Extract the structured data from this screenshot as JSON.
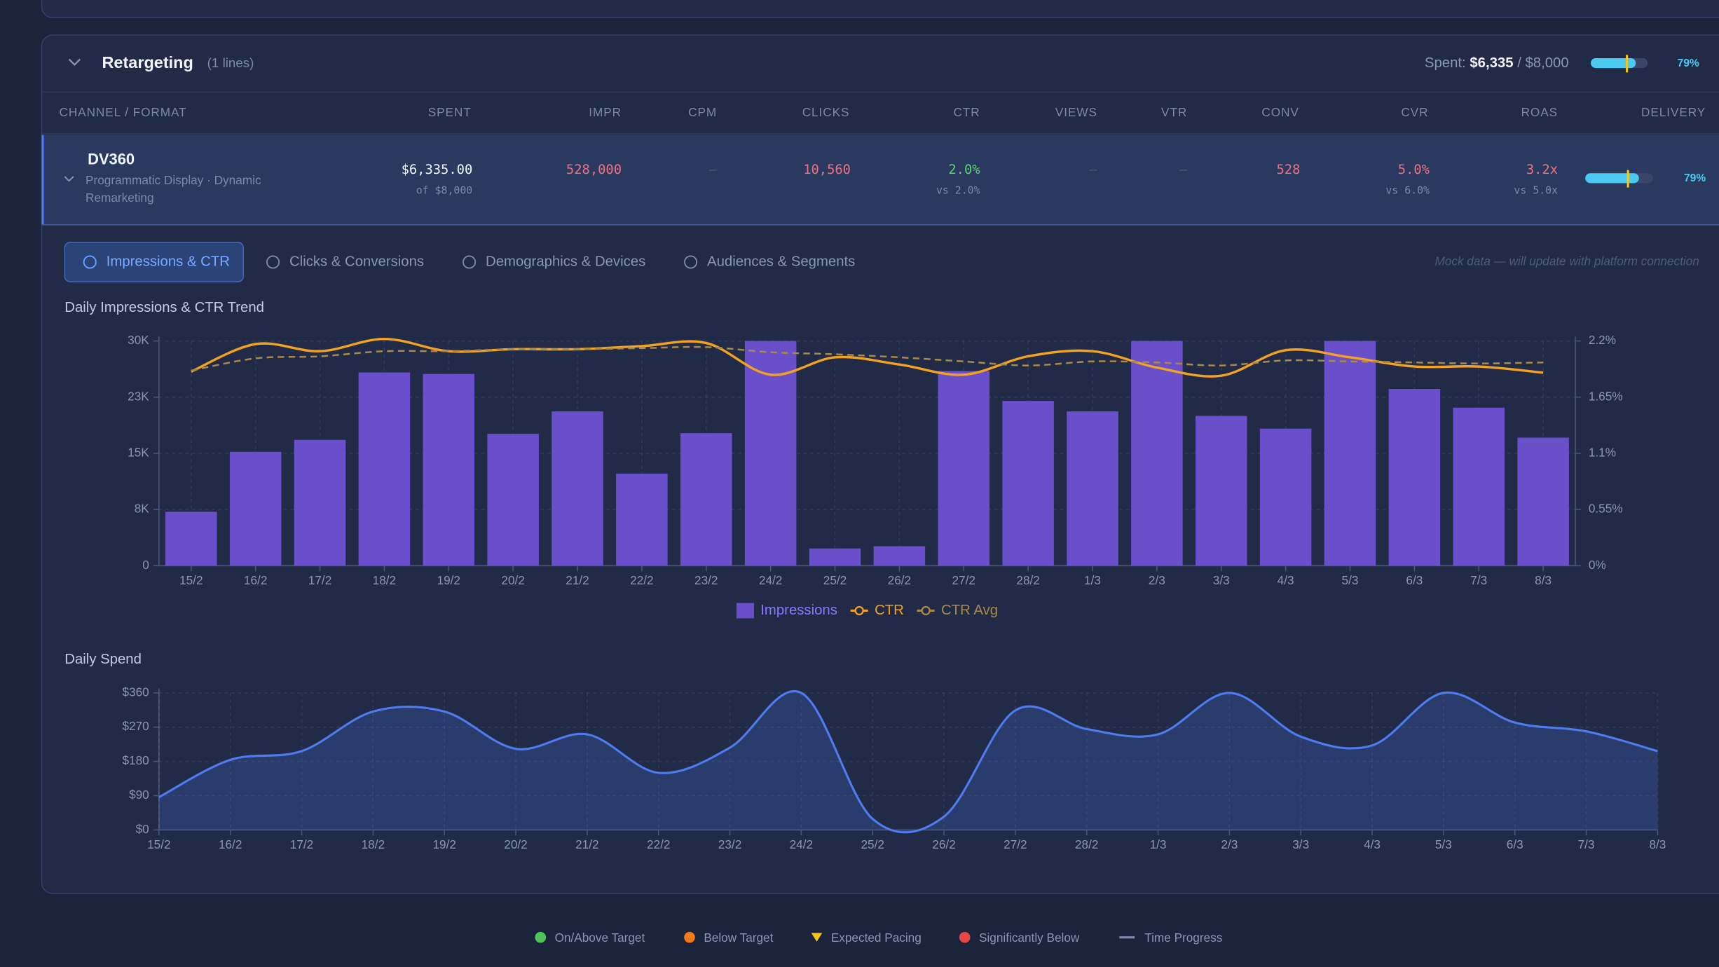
{
  "section": {
    "title": "Retargeting",
    "lines": "(1 lines)",
    "spent_label": "Spent:",
    "spent": "$6,335",
    "budget": "/ $8,000",
    "pacing": {
      "value": 79,
      "label": "79%"
    }
  },
  "table": {
    "headers": [
      "CHANNEL / FORMAT",
      "SPENT",
      "IMPR",
      "CPM",
      "CLICKS",
      "CTR",
      "VIEWS",
      "VTR",
      "CONV",
      "CVR",
      "ROAS",
      "DELIVERY"
    ],
    "rows": [
      {
        "name": "DV360",
        "description": "Programmatic Display · Dynamic Remarketing",
        "spent": "$6,335.00",
        "spent_note": "of $8,000",
        "impr": "528,000",
        "cpm": "—",
        "clicks": "10,560",
        "ctr": "2.0%",
        "ctr_note": "vs 2.0%",
        "views": "—",
        "vtr": "—",
        "conv": "528",
        "cvr": "5.0%",
        "cvr_note": "vs 6.0%",
        "roas": "3.2x",
        "roas_note": "vs 5.0x",
        "delivery": {
          "value": 79,
          "label": "79%"
        }
      }
    ]
  },
  "tabs": {
    "items": [
      "Impressions & CTR",
      "Clicks & Conversions",
      "Demographics & Devices",
      "Audiences & Segments"
    ],
    "active": 0,
    "note": "Mock data — will update with platform connection"
  },
  "chart_data": [
    {
      "type": "bar",
      "title": "Daily Impressions & CTR Trend",
      "categories": [
        "15/2",
        "16/2",
        "17/2",
        "18/2",
        "19/2",
        "20/2",
        "21/2",
        "22/2",
        "23/2",
        "24/2",
        "25/2",
        "26/2",
        "27/2",
        "28/2",
        "1/3",
        "2/3",
        "3/3",
        "4/3",
        "5/3",
        "6/3",
        "7/3",
        "8/3"
      ],
      "series": [
        {
          "name": "Impressions",
          "type": "bar",
          "color": "#6a4fcb",
          "values": [
            7200,
            15200,
            16800,
            25800,
            25600,
            17600,
            20600,
            12300,
            17700,
            30000,
            2300,
            2600,
            26000,
            22000,
            20600,
            30000,
            20000,
            18300,
            30000,
            23600,
            21100,
            17100
          ]
        },
        {
          "name": "CTR",
          "type": "line",
          "axis": "y2",
          "color": "#f2a221",
          "values": [
            1.9,
            2.17,
            2.1,
            2.22,
            2.1,
            2.12,
            2.12,
            2.15,
            2.18,
            1.87,
            2.04,
            1.97,
            1.87,
            2.05,
            2.1,
            1.94,
            1.86,
            2.11,
            2.04,
            1.95,
            1.95,
            1.89
          ]
        },
        {
          "name": "CTR Avg",
          "type": "line",
          "axis": "y2",
          "color": "#a8894a",
          "dashed": true,
          "values": [
            1.91,
            2.03,
            2.05,
            2.1,
            2.1,
            2.12,
            2.12,
            2.13,
            2.14,
            2.09,
            2.07,
            2.04,
            2.0,
            1.96,
            2.0,
            1.99,
            1.96,
            2.01,
            2.0,
            1.99,
            1.98,
            1.99
          ]
        }
      ],
      "ylim": [
        0,
        30000
      ],
      "yticks": [
        0,
        {
          "value": 7500,
          "label": "8K"
        },
        {
          "value": 15000,
          "label": "15K"
        },
        {
          "value": 22500,
          "label": "23K"
        },
        {
          "value": 30000,
          "label": "30K"
        }
      ],
      "y2lim": [
        0,
        2.2
      ],
      "y2ticks": [
        {
          "value": 0,
          "label": "0%"
        },
        {
          "value": 0.55,
          "label": "0.55%"
        },
        {
          "value": 1.1,
          "label": "1.1%"
        },
        {
          "value": 1.65,
          "label": "1.65%"
        },
        {
          "value": 2.2,
          "label": "2.2%"
        }
      ],
      "grid": true,
      "legend": "bottom"
    },
    {
      "type": "area",
      "title": "Daily Spend",
      "categories": [
        "15/2",
        "16/2",
        "17/2",
        "18/2",
        "19/2",
        "20/2",
        "21/2",
        "22/2",
        "23/2",
        "24/2",
        "25/2",
        "26/2",
        "27/2",
        "28/2",
        "1/3",
        "2/3",
        "3/3",
        "4/3",
        "5/3",
        "6/3",
        "7/3",
        "8/3"
      ],
      "values": [
        86,
        184,
        207,
        311,
        311,
        213,
        251,
        150,
        216,
        360,
        29,
        35,
        314,
        265,
        251,
        360,
        245,
        222,
        360,
        282,
        259,
        207
      ],
      "color": "#4f7bef",
      "ylim": [
        0,
        360
      ],
      "yticks": [
        {
          "value": 0,
          "label": "$0"
        },
        {
          "value": 90,
          "label": "$90"
        },
        {
          "value": 180,
          "label": "$180"
        },
        {
          "value": 270,
          "label": "$270"
        },
        {
          "value": 360,
          "label": "$360"
        }
      ],
      "grid": true
    }
  ],
  "status_legend": [
    "On/Above Target",
    "Below Target",
    "Expected Pacing",
    "Significantly Below",
    "Time Progress"
  ]
}
